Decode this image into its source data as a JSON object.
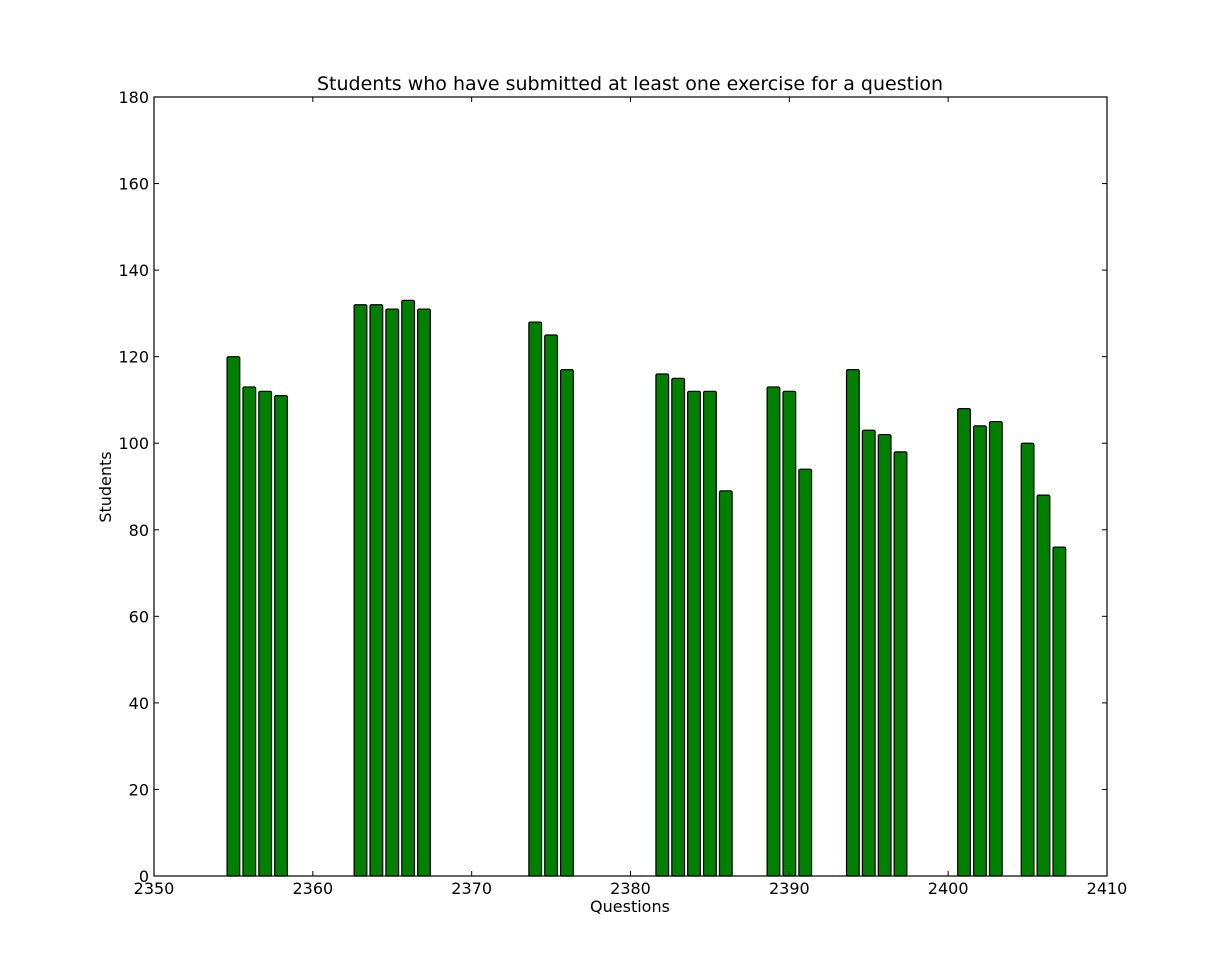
{
  "chart_data": {
    "type": "bar",
    "title": "Students who have submitted at least one exercise for a question",
    "xlabel": "Questions",
    "ylabel": "Students",
    "xlim": [
      2350,
      2410
    ],
    "ylim": [
      0,
      180
    ],
    "xticks": [
      2350,
      2360,
      2370,
      2380,
      2390,
      2400,
      2410
    ],
    "yticks": [
      0,
      20,
      40,
      60,
      80,
      100,
      120,
      140,
      160,
      180
    ],
    "bar_color": "#007f00",
    "grid": false,
    "x": [
      2351,
      2355,
      2356,
      2357,
      2358,
      2363,
      2364,
      2365,
      2366,
      2367,
      2374,
      2375,
      2376,
      2382,
      2383,
      2384,
      2385,
      2386,
      2389,
      2390,
      2391,
      2394,
      2395,
      2396,
      2397,
      2401,
      2402,
      2403,
      2405,
      2406,
      2407,
      2409
    ],
    "values": [
      0,
      120,
      113,
      112,
      111,
      132,
      132,
      131,
      133,
      131,
      128,
      125,
      117,
      116,
      115,
      112,
      112,
      89,
      113,
      112,
      94,
      117,
      103,
      102,
      98,
      108,
      104,
      105,
      100,
      88,
      76,
      0
    ]
  }
}
